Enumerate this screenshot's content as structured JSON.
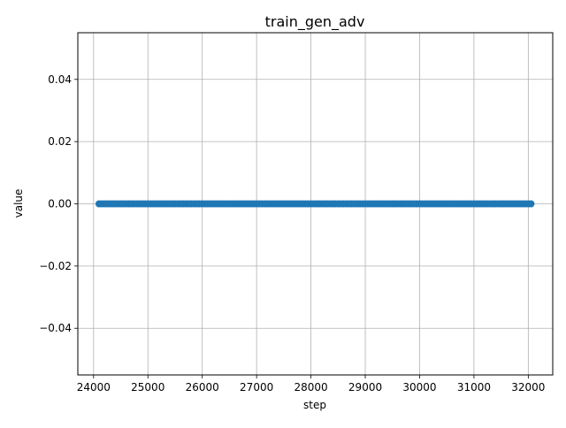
{
  "chart_data": {
    "type": "scatter",
    "title": "train_gen_adv",
    "xlabel": "step",
    "ylabel": "value",
    "xlim": [
      23710,
      32450
    ],
    "ylim": [
      -0.055,
      0.055
    ],
    "x_ticks": [
      24000,
      25000,
      26000,
      27000,
      28000,
      29000,
      30000,
      31000,
      32000
    ],
    "y_ticks": [
      -0.04,
      -0.02,
      0.0,
      0.02,
      0.04
    ],
    "y_tick_labels": [
      "−0.04",
      "−0.02",
      "0.00",
      "0.02",
      "0.04"
    ],
    "grid": true,
    "series": [
      {
        "color": "#1f77b4",
        "x_start": 24100,
        "x_end": 32050,
        "x_step": 50,
        "y": 0.0
      }
    ]
  }
}
